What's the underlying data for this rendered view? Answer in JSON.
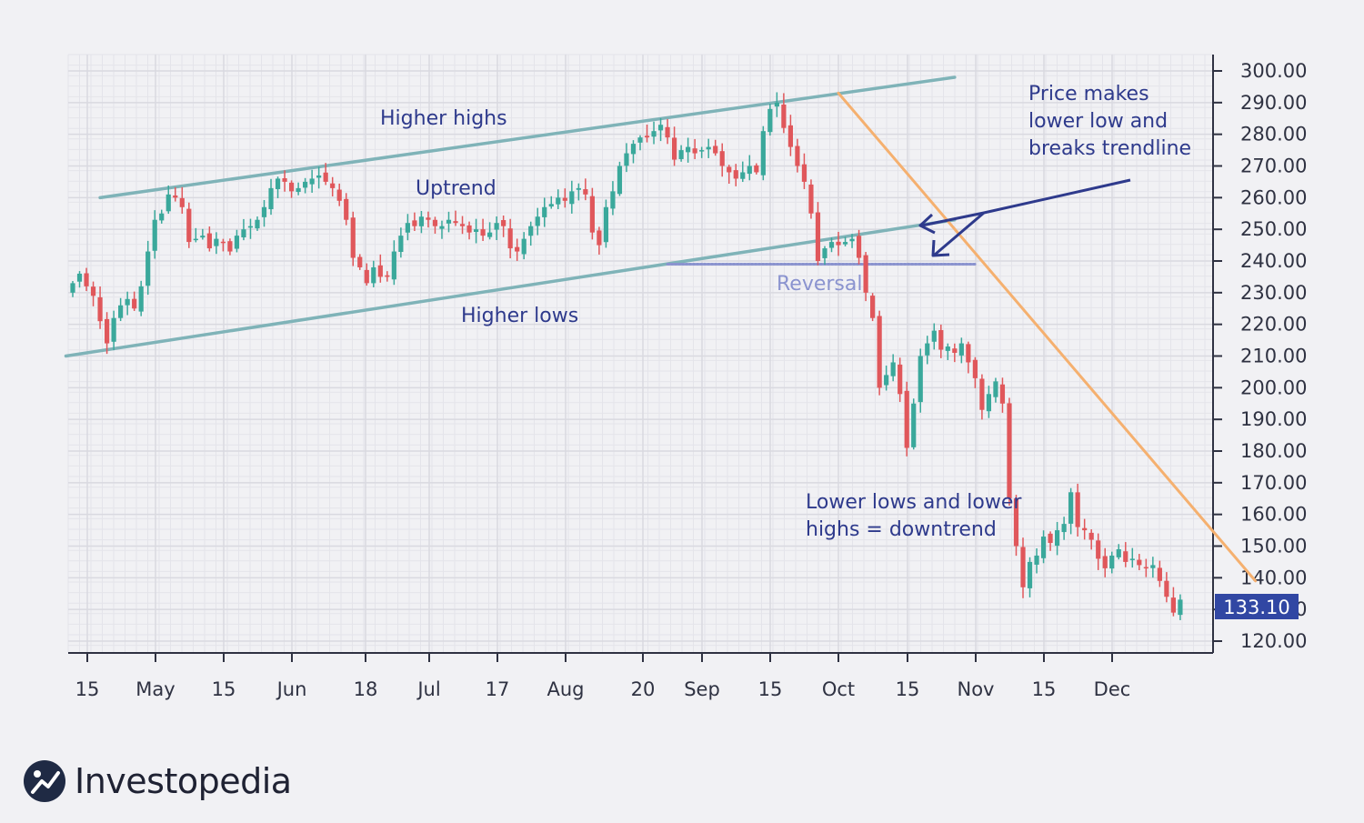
{
  "colors": {
    "background": "#f1f1f4",
    "grid": "#d9d9e0",
    "axis": "#2f3242",
    "up": "#3aa89b",
    "down": "#e0575b",
    "trend_channel": "#7fb3b8",
    "downtrend_line": "#f5b06f",
    "annotation": "#2e3a8c",
    "reversal": "#8a93cf",
    "price_tag": "#3147a3"
  },
  "chart_data": {
    "type": "candlestick",
    "title": "",
    "xlabel": "",
    "ylabel": "",
    "ylim": [
      116,
      303
    ],
    "y_ticks": [
      "300.00",
      "290.00",
      "280.00",
      "270.00",
      "260.00",
      "250.00",
      "240.00",
      "230.00",
      "220.00",
      "210.00",
      "200.00",
      "190.00",
      "180.00",
      "170.00",
      "160.00",
      "150.00",
      "140.00",
      "130.00",
      "120.00"
    ],
    "x_tick_labels": [
      "15",
      "May",
      "15",
      "Jun",
      "18",
      "Jul",
      "17",
      "Aug",
      "20",
      "Sep",
      "15",
      "Oct",
      "15",
      "Nov",
      "15",
      "Dec"
    ],
    "last_price": "133.10",
    "close": [
      233,
      236,
      232,
      229,
      221,
      214,
      222,
      226,
      228,
      225,
      232,
      243,
      253,
      255,
      261,
      260,
      257,
      246,
      247,
      248,
      244,
      247,
      246,
      243,
      248,
      250,
      251,
      253,
      257,
      263,
      266,
      265,
      262,
      263,
      265,
      266,
      267,
      265,
      263,
      259,
      253,
      241,
      238,
      233,
      238,
      235,
      235,
      243,
      248,
      252,
      251,
      254,
      253,
      251,
      251,
      253,
      252,
      251,
      249,
      250,
      248,
      249,
      252,
      251,
      244,
      243,
      247,
      251,
      254,
      257,
      258,
      260,
      259,
      262,
      263,
      261,
      249,
      245,
      257,
      262,
      270,
      274,
      277,
      279,
      279,
      281,
      283,
      279,
      272,
      275,
      276,
      274,
      275,
      276,
      274,
      270,
      268,
      266,
      268,
      270,
      268,
      281,
      288,
      290,
      282,
      276,
      270,
      265,
      255,
      240,
      244,
      246,
      245,
      246,
      247,
      241,
      230,
      222,
      200,
      204,
      208,
      198,
      181,
      195,
      210,
      214,
      218,
      212,
      213,
      211,
      214,
      208,
      203,
      193,
      198,
      202,
      195,
      165,
      150,
      137,
      145,
      147,
      153,
      151,
      155,
      157,
      167,
      156,
      155,
      152,
      146,
      143,
      147,
      149,
      145,
      146,
      144,
      143,
      144,
      139,
      134,
      129,
      133.1
    ],
    "annotations": {
      "higher_highs": "Higher highs",
      "uptrend": "Uptrend",
      "higher_lows": "Higher lows",
      "reversal": "Reversal",
      "breaks_line1": "Price makes",
      "breaks_line2": "lower low and",
      "breaks_line3": "breaks trendline",
      "downtrend_line1": "Lower lows and lower",
      "downtrend_line2": "highs = downtrend"
    },
    "trendlines": {
      "upper_channel": [
        [
          4,
          260
        ],
        [
          129,
          298
        ]
      ],
      "lower_channel": [
        [
          -1,
          210
        ],
        [
          129,
          253
        ]
      ],
      "downtrend": [
        [
          112,
          293
        ],
        [
          173,
          139
        ]
      ],
      "reversal_level": [
        [
          87,
          239
        ],
        [
          132,
          239
        ]
      ]
    }
  },
  "branding": {
    "logo_text": "Investopedia",
    "logo_icon": "investopedia-logo-icon"
  }
}
